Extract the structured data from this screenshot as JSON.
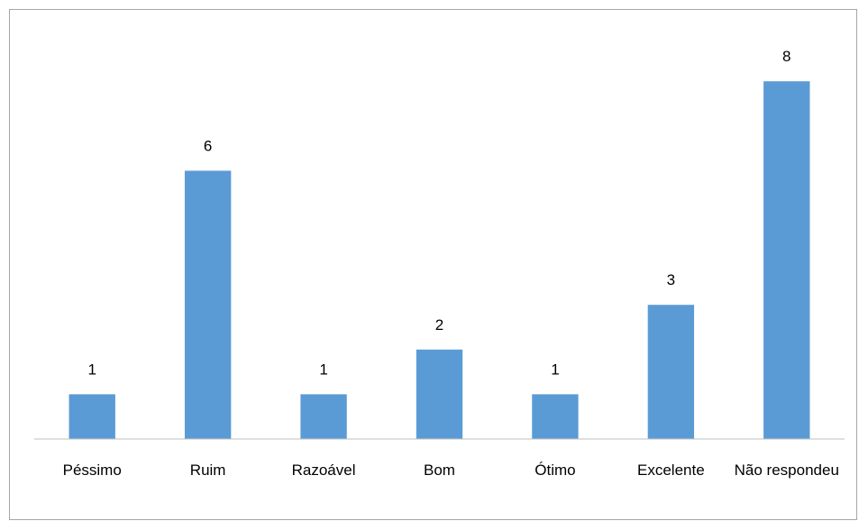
{
  "chart_data": {
    "type": "bar",
    "categories": [
      "Péssimo",
      "Ruim",
      "Razoável",
      "Bom",
      "Ótimo",
      "Excelente",
      "Não respondeu"
    ],
    "values": [
      1,
      6,
      1,
      2,
      1,
      3,
      8
    ],
    "color": "#5b9bd5",
    "ylim": [
      0,
      9
    ],
    "grid": false
  }
}
